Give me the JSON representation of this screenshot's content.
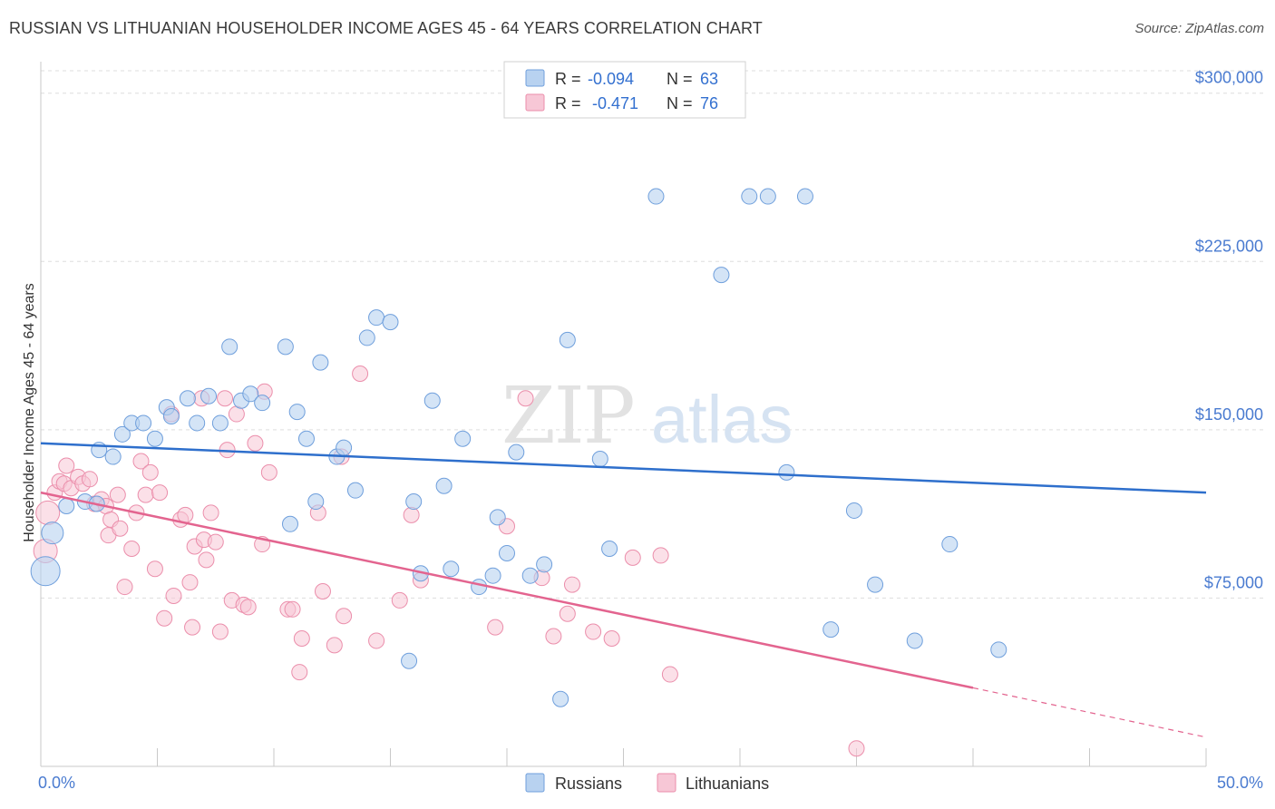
{
  "header": {
    "title": "RUSSIAN VS LITHUANIAN HOUSEHOLDER INCOME AGES 45 - 64 YEARS CORRELATION CHART",
    "source": "Source: ZipAtlas.com"
  },
  "watermark": {
    "zip": "ZIP",
    "atlas": "atlas"
  },
  "legend": {
    "rows": [
      {
        "r_label": "R =",
        "r_value": "-0.094",
        "n_label": "N =",
        "n_value": "63"
      },
      {
        "r_label": "R =",
        "r_value": "-0.471",
        "n_label": "N =",
        "n_value": "76"
      }
    ],
    "bottom": [
      "Russians",
      "Lithuanians"
    ]
  },
  "colors": {
    "russians_fill": "#b8d2f0",
    "russians_stroke": "#6f9fdc",
    "russians_line": "#2e6fcc",
    "lithuanians_fill": "#f7c7d6",
    "lithuanians_stroke": "#eb8eab",
    "lithuanians_line": "#e3648f",
    "axis_text": "#4a7bd0",
    "grid": "#dddddd"
  },
  "chart_data": {
    "type": "scatter",
    "title": "RUSSIAN VS LITHUANIAN HOUSEHOLDER INCOME AGES 45 - 64 YEARS CORRELATION CHART",
    "xlabel": "",
    "ylabel": "Householder Income Ages 45 - 64 years",
    "xlim": [
      0,
      50
    ],
    "ylim": [
      0,
      310000
    ],
    "x_tick_labels": [
      "0.0%",
      "50.0%"
    ],
    "y_ticks": [
      75000,
      150000,
      225000,
      300000
    ],
    "y_tick_labels": [
      "$75,000",
      "$150,000",
      "$225,000",
      "$300,000"
    ],
    "grid": true,
    "legend_position": "top-center",
    "series": [
      {
        "name": "Russians",
        "r": -0.094,
        "n": 63,
        "trend": {
          "x": [
            0,
            50
          ],
          "y": [
            144000,
            122000
          ]
        },
        "points": [
          [
            0.2,
            87000
          ],
          [
            0.5,
            104000
          ],
          [
            1.1,
            116000
          ],
          [
            1.9,
            118000
          ],
          [
            2.4,
            117000
          ],
          [
            2.5,
            141000
          ],
          [
            3.1,
            138000
          ],
          [
            3.5,
            148000
          ],
          [
            3.9,
            153000
          ],
          [
            4.4,
            153000
          ],
          [
            4.9,
            146000
          ],
          [
            5.4,
            160000
          ],
          [
            5.6,
            156000
          ],
          [
            6.3,
            164000
          ],
          [
            6.7,
            153000
          ],
          [
            7.2,
            165000
          ],
          [
            7.7,
            153000
          ],
          [
            8.1,
            187000
          ],
          [
            8.6,
            163000
          ],
          [
            9.0,
            166000
          ],
          [
            9.5,
            162000
          ],
          [
            10.5,
            187000
          ],
          [
            10.7,
            108000
          ],
          [
            11.0,
            158000
          ],
          [
            11.4,
            146000
          ],
          [
            11.8,
            118000
          ],
          [
            12.0,
            180000
          ],
          [
            12.7,
            138000
          ],
          [
            13.0,
            142000
          ],
          [
            13.5,
            123000
          ],
          [
            14.0,
            191000
          ],
          [
            14.4,
            200000
          ],
          [
            15.0,
            198000
          ],
          [
            15.8,
            47000
          ],
          [
            16.0,
            118000
          ],
          [
            16.3,
            86000
          ],
          [
            16.8,
            163000
          ],
          [
            17.3,
            125000
          ],
          [
            17.6,
            88000
          ],
          [
            18.1,
            146000
          ],
          [
            18.8,
            80000
          ],
          [
            19.4,
            85000
          ],
          [
            19.6,
            111000
          ],
          [
            20.0,
            95000
          ],
          [
            20.4,
            140000
          ],
          [
            21.0,
            85000
          ],
          [
            21.6,
            90000
          ],
          [
            22.3,
            30000
          ],
          [
            22.6,
            190000
          ],
          [
            24.0,
            137000
          ],
          [
            24.4,
            97000
          ],
          [
            26.4,
            254000
          ],
          [
            29.2,
            219000
          ],
          [
            30.4,
            254000
          ],
          [
            31.2,
            254000
          ],
          [
            32.0,
            131000
          ],
          [
            32.8,
            254000
          ],
          [
            33.9,
            61000
          ],
          [
            34.9,
            114000
          ],
          [
            35.8,
            81000
          ],
          [
            37.5,
            56000
          ],
          [
            39.0,
            99000
          ],
          [
            41.1,
            52000
          ]
        ]
      },
      {
        "name": "Lithuanians",
        "r": -0.471,
        "n": 76,
        "trend": {
          "x": [
            0,
            40
          ],
          "y": [
            122000,
            35000
          ],
          "dashed_to": [
            50,
            13000
          ]
        },
        "points": [
          [
            0.2,
            96000
          ],
          [
            0.3,
            113000
          ],
          [
            0.6,
            122000
          ],
          [
            0.8,
            127000
          ],
          [
            1.0,
            126000
          ],
          [
            1.1,
            134000
          ],
          [
            1.3,
            124000
          ],
          [
            1.6,
            129000
          ],
          [
            1.8,
            126000
          ],
          [
            2.1,
            128000
          ],
          [
            2.3,
            117000
          ],
          [
            2.6,
            119000
          ],
          [
            2.8,
            116000
          ],
          [
            2.9,
            103000
          ],
          [
            3.0,
            110000
          ],
          [
            3.3,
            121000
          ],
          [
            3.4,
            106000
          ],
          [
            3.6,
            80000
          ],
          [
            3.9,
            97000
          ],
          [
            4.1,
            113000
          ],
          [
            4.3,
            136000
          ],
          [
            4.5,
            121000
          ],
          [
            4.7,
            131000
          ],
          [
            4.9,
            88000
          ],
          [
            5.1,
            122000
          ],
          [
            5.3,
            66000
          ],
          [
            5.6,
            157000
          ],
          [
            5.7,
            76000
          ],
          [
            6.0,
            110000
          ],
          [
            6.2,
            112000
          ],
          [
            6.4,
            82000
          ],
          [
            6.5,
            62000
          ],
          [
            6.6,
            98000
          ],
          [
            6.9,
            164000
          ],
          [
            7.0,
            101000
          ],
          [
            7.1,
            92000
          ],
          [
            7.3,
            113000
          ],
          [
            7.5,
            100000
          ],
          [
            7.7,
            60000
          ],
          [
            7.9,
            164000
          ],
          [
            8.0,
            141000
          ],
          [
            8.2,
            74000
          ],
          [
            8.4,
            157000
          ],
          [
            8.7,
            72000
          ],
          [
            8.9,
            71000
          ],
          [
            9.2,
            144000
          ],
          [
            9.5,
            99000
          ],
          [
            9.6,
            167000
          ],
          [
            9.8,
            131000
          ],
          [
            10.6,
            70000
          ],
          [
            10.8,
            70000
          ],
          [
            11.1,
            42000
          ],
          [
            11.2,
            57000
          ],
          [
            11.9,
            113000
          ],
          [
            12.1,
            78000
          ],
          [
            12.6,
            54000
          ],
          [
            12.9,
            138000
          ],
          [
            13.0,
            67000
          ],
          [
            13.7,
            175000
          ],
          [
            14.4,
            56000
          ],
          [
            15.4,
            74000
          ],
          [
            15.9,
            112000
          ],
          [
            16.3,
            83000
          ],
          [
            19.5,
            62000
          ],
          [
            20.0,
            107000
          ],
          [
            20.8,
            164000
          ],
          [
            21.5,
            84000
          ],
          [
            22.0,
            58000
          ],
          [
            22.6,
            68000
          ],
          [
            22.8,
            81000
          ],
          [
            23.7,
            60000
          ],
          [
            25.4,
            93000
          ],
          [
            27.0,
            41000
          ],
          [
            35.0,
            8000
          ],
          [
            26.6,
            94000
          ],
          [
            24.5,
            57000
          ]
        ]
      }
    ]
  }
}
